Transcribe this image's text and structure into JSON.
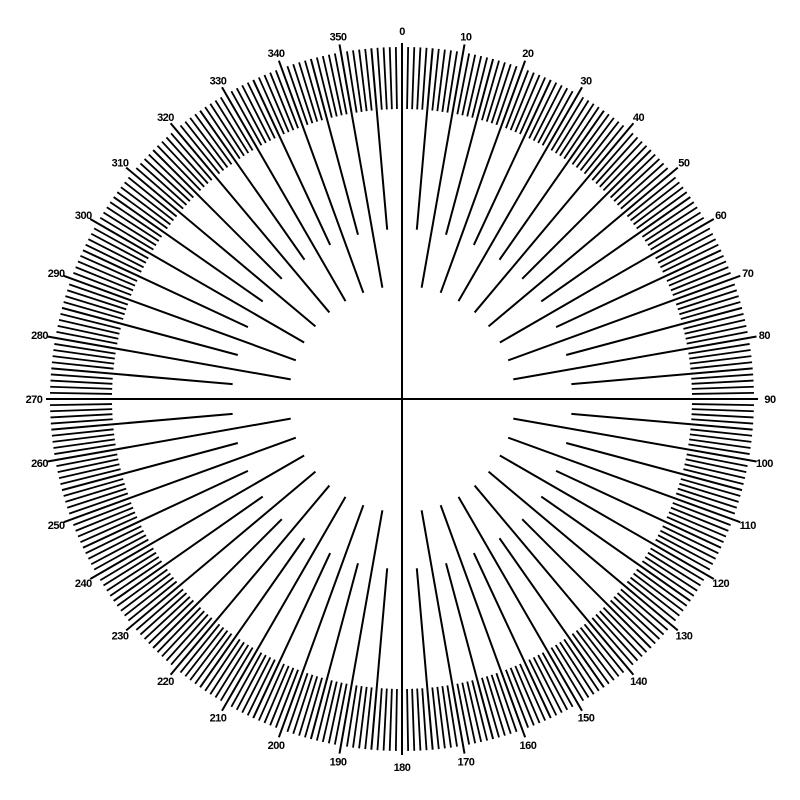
{
  "diagram": {
    "type": "degree-dial",
    "ink_color": "#000000",
    "background_color": "#ffffff",
    "range_degrees": [
      0,
      360
    ],
    "minor_tick_step_degrees": 1,
    "major_tick_step_degrees": 5,
    "label_step_degrees": 10,
    "crosshair_degrees": [
      0,
      90,
      180,
      270
    ],
    "labels": [
      "0",
      "10",
      "20",
      "30",
      "40",
      "50",
      "60",
      "70",
      "80",
      "90",
      "100",
      "110",
      "120",
      "130",
      "140",
      "150",
      "160",
      "170",
      "180",
      "190",
      "200",
      "210",
      "220",
      "230",
      "240",
      "250",
      "260",
      "270",
      "280",
      "290",
      "300",
      "310",
      "320",
      "330",
      "340",
      "350"
    ]
  }
}
